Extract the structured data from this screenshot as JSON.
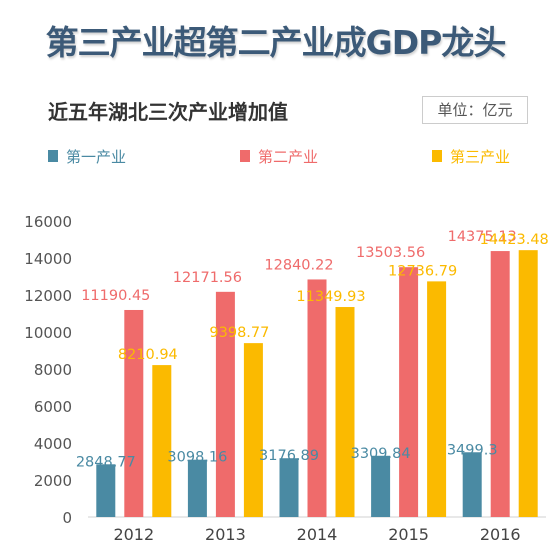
{
  "headline": "第三产业超第二产业成GDP龙头",
  "unit_label": "单位：亿元",
  "chart_data": {
    "type": "bar",
    "title": "近五年湖北三次产业增加值",
    "categories": [
      "2012",
      "2013",
      "2014",
      "2015",
      "2016"
    ],
    "series": [
      {
        "name": "第一产业",
        "color": "#4a8aa3",
        "values": [
          2848.77,
          3098.16,
          3176.89,
          3309.84,
          3499.3
        ],
        "labels": [
          "2848.77",
          "3098.16",
          "3176.89",
          "3309.84",
          "3499.3"
        ]
      },
      {
        "name": "第二产业",
        "color": "#ef6b6b",
        "values": [
          11190.45,
          12171.56,
          12840.22,
          13503.56,
          14375.13
        ],
        "labels": [
          "11190.45",
          "12171.56",
          "12840.22",
          "13503.56",
          "14375.13"
        ]
      },
      {
        "name": "第三产业",
        "color": "#fbba00",
        "values": [
          8210.94,
          9398.77,
          11349.93,
          12736.79,
          14423.48
        ],
        "labels": [
          "8210.94",
          "9398.77",
          "11349.93",
          "12736.79",
          "14423.48"
        ]
      }
    ],
    "yticks": [
      "0",
      "2000",
      "4000",
      "6000",
      "8000",
      "10000",
      "12000",
      "14000",
      "16000"
    ],
    "ylim": [
      0,
      16000
    ],
    "xlabel": "",
    "ylabel": "",
    "grid": false,
    "legend_position": "top"
  }
}
